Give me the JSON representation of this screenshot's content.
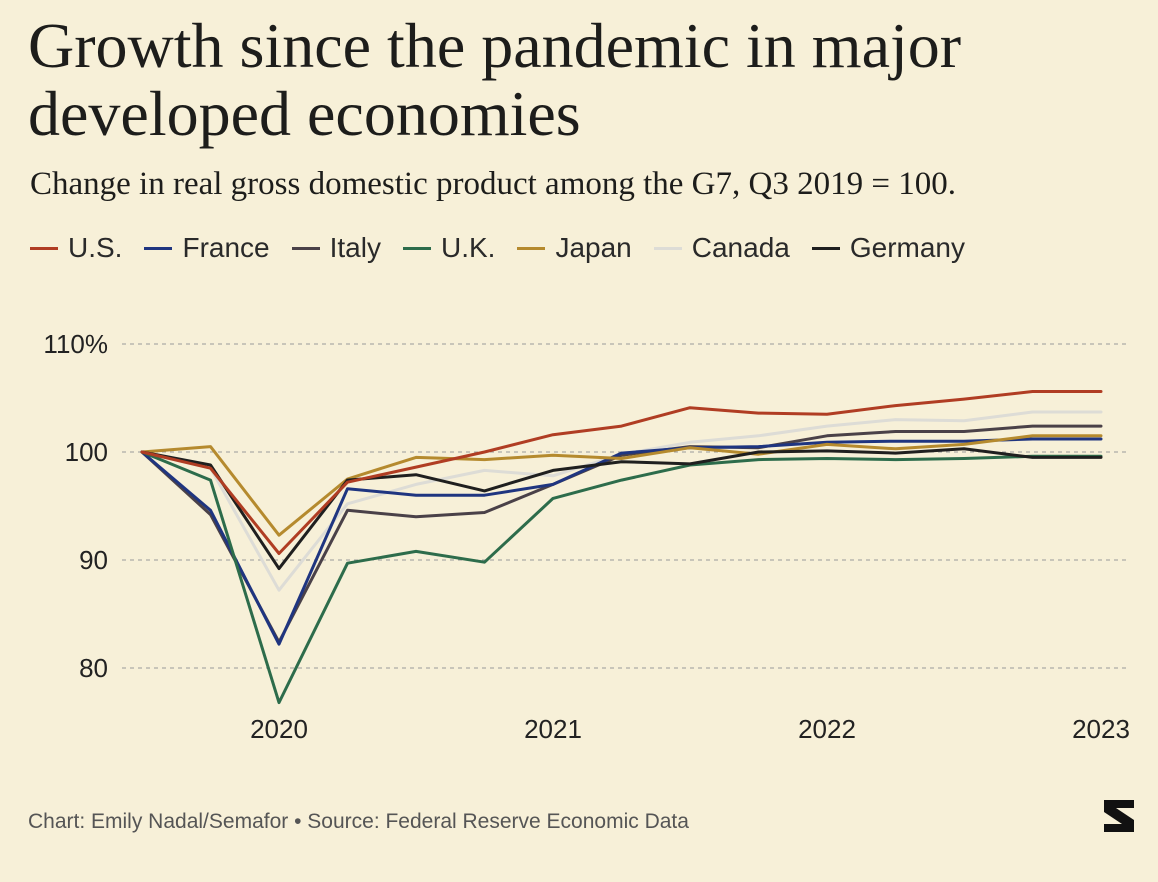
{
  "title": "Growth since the pandemic in major developed economies",
  "subtitle": "Change in real gross domestic product among the G7, Q3 2019 = 100.",
  "source": "Chart: Emily Nadal/Semafor • Source: Federal Reserve Economic Data",
  "colors": {
    "background": "#f7f0d8",
    "grid": "#9a9a9a"
  },
  "chart_data": {
    "type": "line",
    "x": [
      "2019-Q3",
      "2019-Q4",
      "2020-Q1",
      "2020-Q2",
      "2020-Q3",
      "2020-Q4",
      "2021-Q1",
      "2021-Q2",
      "2021-Q3",
      "2021-Q4",
      "2022-Q1",
      "2022-Q2",
      "2022-Q3",
      "2022-Q4",
      "2023-Q1"
    ],
    "x_ticks": [
      {
        "label": "2020",
        "x": "2020-Q1"
      },
      {
        "label": "2021",
        "x": "2021-Q1"
      },
      {
        "label": "2022",
        "x": "2022-Q1"
      },
      {
        "label": "2023",
        "x": "2023-Q1"
      }
    ],
    "y_ticks": [
      {
        "label": "110%",
        "value": 110
      },
      {
        "label": "100",
        "value": 100
      },
      {
        "label": "90",
        "value": 90
      },
      {
        "label": "80",
        "value": 80
      }
    ],
    "ylim": [
      77,
      111
    ],
    "grid": "horizontal dashed",
    "legend": "top",
    "series": [
      {
        "name": "Canada",
        "color": "#dddcd6",
        "values": [
          100,
          98.5,
          87.2,
          95.2,
          97.0,
          98.3,
          97.8,
          99.8,
          100.9,
          101.5,
          102.4,
          103.0,
          102.9,
          103.7,
          103.7
        ]
      },
      {
        "name": "Italy",
        "color": "#4a4148",
        "values": [
          100,
          94.2,
          82.4,
          94.6,
          94.0,
          94.4,
          97.0,
          99.7,
          100.5,
          100.4,
          101.5,
          101.9,
          101.9,
          102.4,
          102.4
        ]
      },
      {
        "name": "France",
        "color": "#1f3580",
        "values": [
          100,
          94.6,
          82.2,
          96.6,
          96.0,
          96.0,
          97.0,
          99.9,
          100.4,
          100.5,
          100.9,
          101.0,
          101.0,
          101.2,
          101.2
        ]
      },
      {
        "name": "Japan",
        "color": "#b58a2e",
        "values": [
          100,
          100.5,
          92.3,
          97.5,
          99.5,
          99.3,
          99.7,
          99.4,
          100.4,
          99.8,
          100.7,
          100.3,
          100.7,
          101.5,
          101.5
        ]
      },
      {
        "name": "U.K.",
        "color": "#2d6c4b",
        "values": [
          100,
          97.4,
          76.8,
          89.7,
          90.8,
          89.8,
          95.7,
          97.4,
          98.8,
          99.3,
          99.4,
          99.3,
          99.4,
          99.6,
          99.6
        ]
      },
      {
        "name": "Germany",
        "color": "#1f1f1f",
        "values": [
          100,
          98.8,
          89.2,
          97.4,
          97.9,
          96.4,
          98.3,
          99.1,
          98.9,
          100.0,
          100.1,
          99.9,
          100.3,
          99.5,
          99.5
        ]
      },
      {
        "name": "U.S.",
        "color": "#b03d23",
        "values": [
          100,
          98.5,
          90.6,
          97.2,
          98.6,
          100.0,
          101.6,
          102.4,
          104.1,
          103.6,
          103.5,
          104.3,
          104.9,
          105.6,
          105.6
        ]
      }
    ],
    "legend_order": [
      "U.S.",
      "France",
      "Italy",
      "U.K.",
      "Japan",
      "Canada",
      "Germany"
    ]
  }
}
